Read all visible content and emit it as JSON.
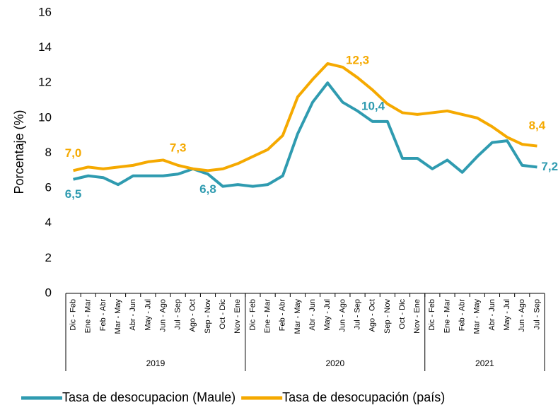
{
  "chart_data": {
    "type": "line",
    "y_label": "Porcentaje (%)",
    "ylim": [
      0,
      16
    ],
    "yticks": [
      0,
      2,
      4,
      6,
      8,
      10,
      12,
      14,
      16
    ],
    "category_groups": [
      {
        "name": "2019",
        "categories": [
          "Dic - Feb",
          "Ene - Mar",
          "Feb - Abr",
          "Mar - May",
          "Abr - Jun",
          "May - Jul",
          "Jun - Ago",
          "Jul - Sep",
          "Ago - Oct",
          "Sep - Nov",
          "Oct - Dic",
          "Nov - Ene"
        ]
      },
      {
        "name": "2020",
        "categories": [
          "Dic - Feb",
          "Ene - Mar",
          "Feb - Abr",
          "Mar - May",
          "Abr - Jun",
          "May - Jul",
          "Jun - Ago",
          "Jul - Sep",
          "Ago - Oct",
          "Sep - Nov",
          "Oct - Dic",
          "Nov - Ene"
        ]
      },
      {
        "name": "2021",
        "categories": [
          "Dic - Feb",
          "Ene - Mar",
          "Feb - Abr",
          "Mar - May",
          "Abr - Jun",
          "May - Jul",
          "Jun - Ago",
          "Jul - Sep"
        ]
      }
    ],
    "series": [
      {
        "name": "Tasa de desocupacion (Maule)",
        "color": "#2f9bb0",
        "values": [
          6.5,
          6.7,
          6.6,
          6.2,
          6.7,
          6.7,
          6.7,
          6.8,
          7.1,
          6.8,
          6.1,
          6.2,
          6.1,
          6.2,
          6.7,
          9.1,
          10.9,
          12.0,
          10.9,
          10.4,
          9.8,
          9.8,
          7.7,
          7.7,
          7.1,
          7.6,
          6.9,
          7.8,
          8.6,
          8.7,
          7.3,
          7.2
        ],
        "value_labels": [
          "6,5",
          null,
          null,
          null,
          null,
          null,
          null,
          null,
          null,
          "6,8",
          null,
          null,
          null,
          null,
          null,
          null,
          null,
          null,
          null,
          "10,4",
          null,
          null,
          null,
          null,
          null,
          null,
          null,
          null,
          null,
          null,
          null,
          "7,2"
        ]
      },
      {
        "name": "Tasa de desocupación (país)",
        "color": "#f5a900",
        "values": [
          7.0,
          7.2,
          7.1,
          7.2,
          7.3,
          7.5,
          7.6,
          7.3,
          7.1,
          7.0,
          7.1,
          7.4,
          7.8,
          8.2,
          9.0,
          11.2,
          12.2,
          13.1,
          12.9,
          12.3,
          11.6,
          10.8,
          10.3,
          10.2,
          10.3,
          10.4,
          10.2,
          10.0,
          9.5,
          8.9,
          8.5,
          8.4
        ],
        "value_labels": [
          "7,0",
          null,
          null,
          null,
          null,
          null,
          null,
          "7,3",
          null,
          null,
          null,
          null,
          null,
          null,
          null,
          null,
          null,
          null,
          null,
          "12,3",
          null,
          null,
          null,
          null,
          null,
          null,
          null,
          null,
          null,
          null,
          null,
          "8,4"
        ]
      }
    ]
  }
}
